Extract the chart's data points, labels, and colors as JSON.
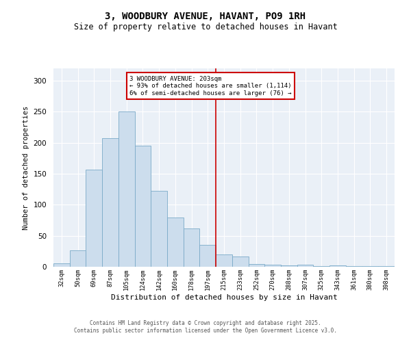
{
  "title_line1": "3, WOODBURY AVENUE, HAVANT, PO9 1RH",
  "title_line2": "Size of property relative to detached houses in Havant",
  "xlabel": "Distribution of detached houses by size in Havant",
  "ylabel": "Number of detached properties",
  "footer_line1": "Contains HM Land Registry data © Crown copyright and database right 2025.",
  "footer_line2": "Contains public sector information licensed under the Open Government Licence v3.0.",
  "annotation_line1": "3 WOODBURY AVENUE: 203sqm",
  "annotation_line2": "← 93% of detached houses are smaller (1,114)",
  "annotation_line3": "6% of semi-detached houses are larger (76) →",
  "bar_color": "#ccdded",
  "bar_edge_color": "#7aaac8",
  "vline_color": "#cc0000",
  "annotation_box_edgecolor": "#cc0000",
  "background_color": "#eaf0f7",
  "categories": [
    "32sqm",
    "50sqm",
    "69sqm",
    "87sqm",
    "105sqm",
    "124sqm",
    "142sqm",
    "160sqm",
    "178sqm",
    "197sqm",
    "215sqm",
    "233sqm",
    "252sqm",
    "270sqm",
    "288sqm",
    "307sqm",
    "325sqm",
    "343sqm",
    "361sqm",
    "380sqm",
    "398sqm"
  ],
  "values": [
    5,
    26,
    157,
    207,
    250,
    195,
    123,
    80,
    62,
    35,
    20,
    17,
    4,
    3,
    2,
    3,
    1,
    2,
    1,
    1,
    1
  ],
  "ylim": [
    0,
    320
  ],
  "yticks": [
    0,
    50,
    100,
    150,
    200,
    250,
    300
  ],
  "vline_x_index": 9.5,
  "figsize": [
    6.0,
    5.0
  ],
  "dpi": 100
}
